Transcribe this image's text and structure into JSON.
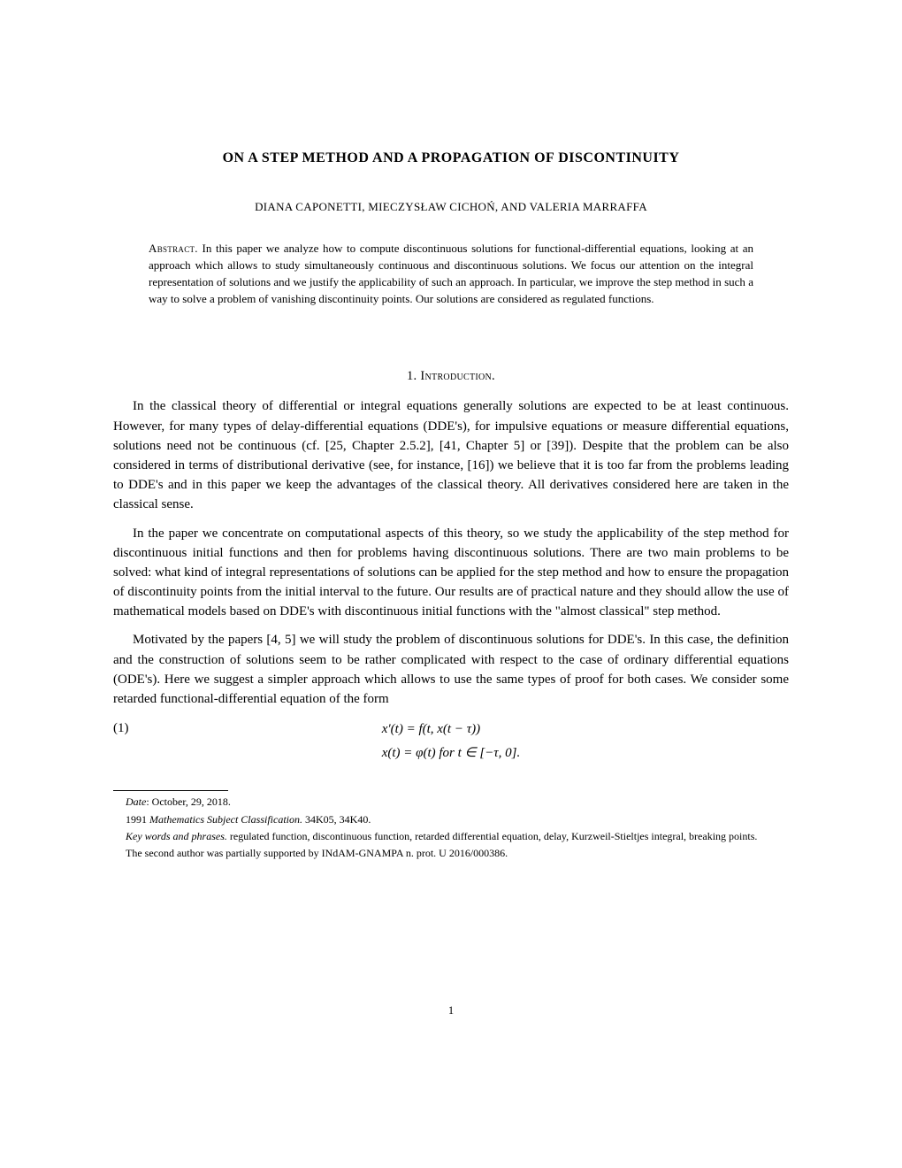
{
  "title": "ON A STEP METHOD AND A PROPAGATION OF DISCONTINUITY",
  "authors": "DIANA CAPONETTI, MIECZYSŁAW CICHOŃ, AND VALERIA MARRAFFA",
  "abstract_label": "Abstract.",
  "abstract_body": " In this paper we analyze how to compute discontinuous solutions for functional-differential equations, looking at an approach which allows to study simultaneously continuous and discontinuous solutions. We focus our attention on the integral representation of solutions and we justify the applicability of such an approach. In particular, we improve the step method in such a way to solve a problem of vanishing discontinuity points. Our solutions are considered as regulated functions.",
  "section_heading": "1. Introduction.",
  "para1": "In the classical theory of differential or integral equations generally solutions are expected to be at least continuous. However, for many types of delay-differential equations (DDE's), for impulsive equations or measure differential equations, solutions need not be continuous (cf. [25, Chapter 2.5.2], [41, Chapter 5] or [39]). Despite that the problem can be also considered in terms of distributional derivative (see, for instance, [16]) we believe that it is too far from the problems leading to DDE's and in this paper we keep the advantages of the classical theory. All derivatives considered here are taken in the classical sense.",
  "para2": "In the paper we concentrate on computational aspects of this theory, so we study the applicability of the step method for discontinuous initial functions and then for problems having discontinuous solutions. There are two main problems to be solved: what kind of integral representations of solutions can be applied for the step method and how to ensure the propagation of discontinuity points from the initial interval to the future. Our results are of practical nature and they should allow the use of mathematical models based on DDE's with discontinuous initial functions with the \"almost classical\" step method.",
  "para3": "Motivated by the papers [4, 5] we will study the problem of discontinuous solutions for DDE's. In this case, the definition and the construction of solutions seem to be rather complicated with respect to the case of ordinary differential equations (ODE's). Here we suggest a simpler approach which allows to use the same types of proof for both cases. We consider some retarded functional-differential equation of the form",
  "eq_number": "(1)",
  "eq_line1": "x′(t)   =   f(t, x(t − τ))",
  "eq_line2": "x(t)   =   φ(t)    for  t ∈ [−τ, 0].",
  "footnotes": {
    "date_label": "Date",
    "date_value": ": October, 29, 2018.",
    "msc_year": "1991 ",
    "msc_label": "Mathematics Subject Classification.",
    "msc_value": " 34K05, 34K40.",
    "kw_label": "Key words and phrases.",
    "kw_value": " regulated function, discontinuous function, retarded differential equation, delay, Kurzweil-Stieltjes integral, breaking points.",
    "support": "The second author was partially supported by INdAM-GNAMPA n. prot. U 2016/000386."
  },
  "page_number": "1"
}
